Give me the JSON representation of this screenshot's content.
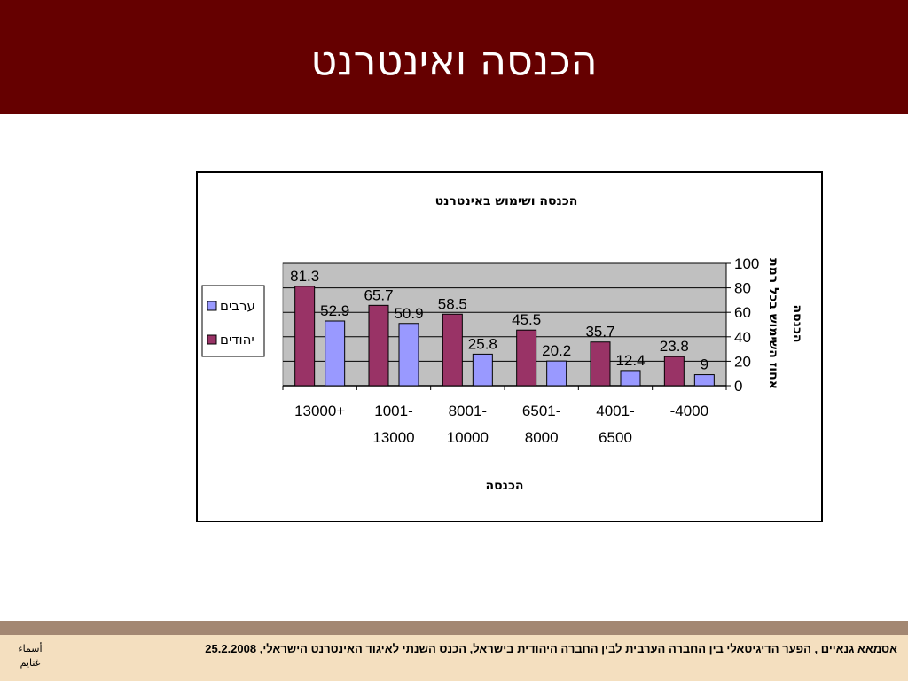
{
  "slide": {
    "title": "הכנסה ואינטרנט",
    "footer_text": "אסמאא גנאיים , הפער הדיגיטאלי בין החברה הערבית לבין החברה היהודית בישראל, הכנס השנתי לאיגוד האינטרנט הישראלי, 25.2.2008",
    "footer_side": "أسماء غنايم",
    "colors": {
      "header": "#650000",
      "footer": "#f4dfbf",
      "footer_stripe": "#a38772"
    }
  },
  "chart_data": {
    "type": "bar",
    "title": "הכנסה ושימוש באינטרנט",
    "xlabel": "הכנסה",
    "ylabel": "אחוז השימוש בכל רמת הכנסה",
    "ylim": [
      0,
      100
    ],
    "yticks": [
      0,
      20,
      40,
      60,
      80,
      100
    ],
    "grid": true,
    "legend_position": "left",
    "categories": [
      [
        "13000+"
      ],
      [
        "1001-",
        "13000"
      ],
      [
        "8001-",
        "10000"
      ],
      [
        "6501-",
        "8000"
      ],
      [
        "4001-",
        "6500"
      ],
      [
        "-4000"
      ]
    ],
    "series": [
      {
        "name": "יהודים",
        "color": "#993366",
        "values": [
          81.3,
          65.7,
          58.5,
          45.5,
          35.7,
          23.8
        ]
      },
      {
        "name": "ערבים",
        "color": "#9999ff",
        "values": [
          52.9,
          50.9,
          25.8,
          20.2,
          12.4,
          9
        ]
      }
    ]
  }
}
